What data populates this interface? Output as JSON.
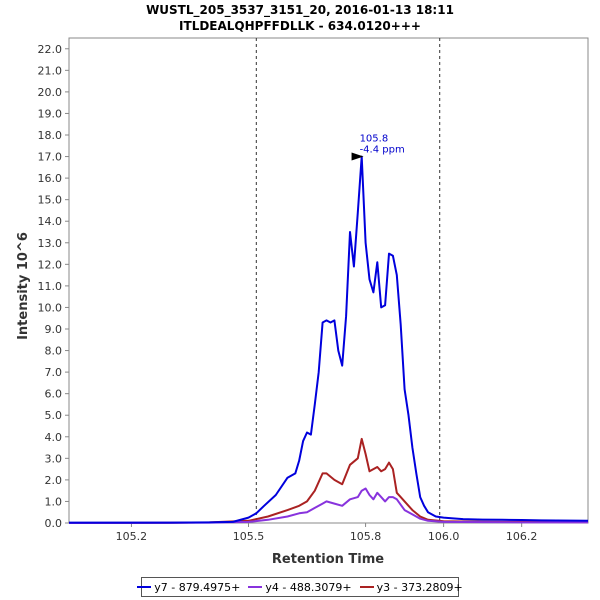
{
  "chart_data": {
    "type": "line",
    "title": "WUSTL_205_3537_3151_20, 2016-01-13 18:11",
    "subtitle": "ITLDEALQHPFFDLLK - 634.0120+++",
    "xlabel": "Retention Time",
    "ylabel": "Intensity 10^6",
    "xlim": [
      105.04,
      106.37
    ],
    "ylim": [
      0,
      22.5
    ],
    "x_ticks": [
      "105.2",
      "105.5",
      "105.8",
      "106.0",
      "106.2"
    ],
    "y_ticks": [
      "0.0",
      "1.0",
      "2.0",
      "3.0",
      "4.0",
      "5.0",
      "6.0",
      "7.0",
      "8.0",
      "9.0",
      "10.0",
      "11.0",
      "12.0",
      "13.0",
      "14.0",
      "15.0",
      "16.0",
      "17.0",
      "18.0",
      "19.0",
      "20.0",
      "21.0",
      "22.0"
    ],
    "grid": false,
    "legend_position": "bottom",
    "integration_boundaries": [
      105.52,
      105.99
    ],
    "peak_annotation": {
      "x": 105.8,
      "y": 17.0,
      "label_rt": "105.8",
      "label_ppm": "-4.4 ppm",
      "color": "#0000cc"
    },
    "series": [
      {
        "name": "y7 - 879.4975+",
        "color": "#0000dd",
        "x": [
          105.04,
          105.2,
          105.3,
          105.4,
          105.46,
          105.5,
          105.52,
          105.54,
          105.57,
          105.6,
          105.62,
          105.63,
          105.64,
          105.65,
          105.66,
          105.67,
          105.68,
          105.69,
          105.7,
          105.71,
          105.72,
          105.73,
          105.74,
          105.75,
          105.76,
          105.77,
          105.78,
          105.79,
          105.8,
          105.81,
          105.82,
          105.83,
          105.84,
          105.85,
          105.86,
          105.87,
          105.88,
          105.89,
          105.9,
          105.91,
          105.92,
          105.93,
          105.94,
          105.95,
          105.96,
          105.97,
          105.98,
          106.0,
          106.02,
          106.05,
          106.1,
          106.15,
          106.2,
          106.25,
          106.37
        ],
        "y": [
          0.02,
          0.02,
          0.02,
          0.03,
          0.05,
          0.25,
          0.45,
          0.8,
          1.3,
          2.1,
          2.3,
          2.9,
          3.8,
          4.2,
          4.1,
          5.5,
          7.0,
          9.3,
          9.4,
          9.3,
          9.4,
          8.0,
          7.3,
          9.6,
          13.5,
          11.9,
          14.4,
          17.0,
          13.0,
          11.3,
          10.7,
          12.1,
          10.0,
          10.1,
          12.5,
          12.4,
          11.5,
          9.2,
          6.2,
          5.0,
          3.5,
          2.3,
          1.2,
          0.8,
          0.5,
          0.4,
          0.3,
          0.25,
          0.22,
          0.18,
          0.16,
          0.15,
          0.14,
          0.12,
          0.1
        ]
      },
      {
        "name": "y4 - 488.3079+",
        "color": "#8833dd",
        "x": [
          105.04,
          105.3,
          105.4,
          105.5,
          105.55,
          105.6,
          105.63,
          105.65,
          105.67,
          105.69,
          105.7,
          105.72,
          105.74,
          105.76,
          105.78,
          105.79,
          105.8,
          105.81,
          105.82,
          105.83,
          105.84,
          105.85,
          105.86,
          105.87,
          105.88,
          105.9,
          105.92,
          105.94,
          105.96,
          106.0,
          106.1,
          106.2,
          106.37
        ],
        "y": [
          0.0,
          0.01,
          0.02,
          0.05,
          0.15,
          0.3,
          0.45,
          0.5,
          0.7,
          0.9,
          1.0,
          0.9,
          0.8,
          1.1,
          1.2,
          1.5,
          1.6,
          1.3,
          1.1,
          1.4,
          1.2,
          1.0,
          1.2,
          1.2,
          1.1,
          0.6,
          0.4,
          0.2,
          0.1,
          0.05,
          0.04,
          0.03,
          0.03
        ]
      },
      {
        "name": "y3 - 373.2809+",
        "color": "#aa2222",
        "x": [
          105.04,
          105.3,
          105.4,
          105.5,
          105.55,
          105.6,
          105.63,
          105.65,
          105.67,
          105.69,
          105.7,
          105.72,
          105.74,
          105.76,
          105.78,
          105.79,
          105.8,
          105.81,
          105.82,
          105.83,
          105.84,
          105.85,
          105.86,
          105.87,
          105.88,
          105.89,
          105.9,
          105.92,
          105.94,
          105.96,
          106.0,
          106.1,
          106.2,
          106.37
        ],
        "y": [
          0.0,
          0.01,
          0.03,
          0.1,
          0.3,
          0.6,
          0.8,
          1.0,
          1.5,
          2.3,
          2.3,
          2.0,
          1.8,
          2.7,
          3.0,
          3.9,
          3.2,
          2.4,
          2.5,
          2.6,
          2.4,
          2.5,
          2.8,
          2.5,
          1.4,
          1.2,
          1.0,
          0.6,
          0.3,
          0.15,
          0.08,
          0.06,
          0.05,
          0.04
        ]
      }
    ]
  }
}
